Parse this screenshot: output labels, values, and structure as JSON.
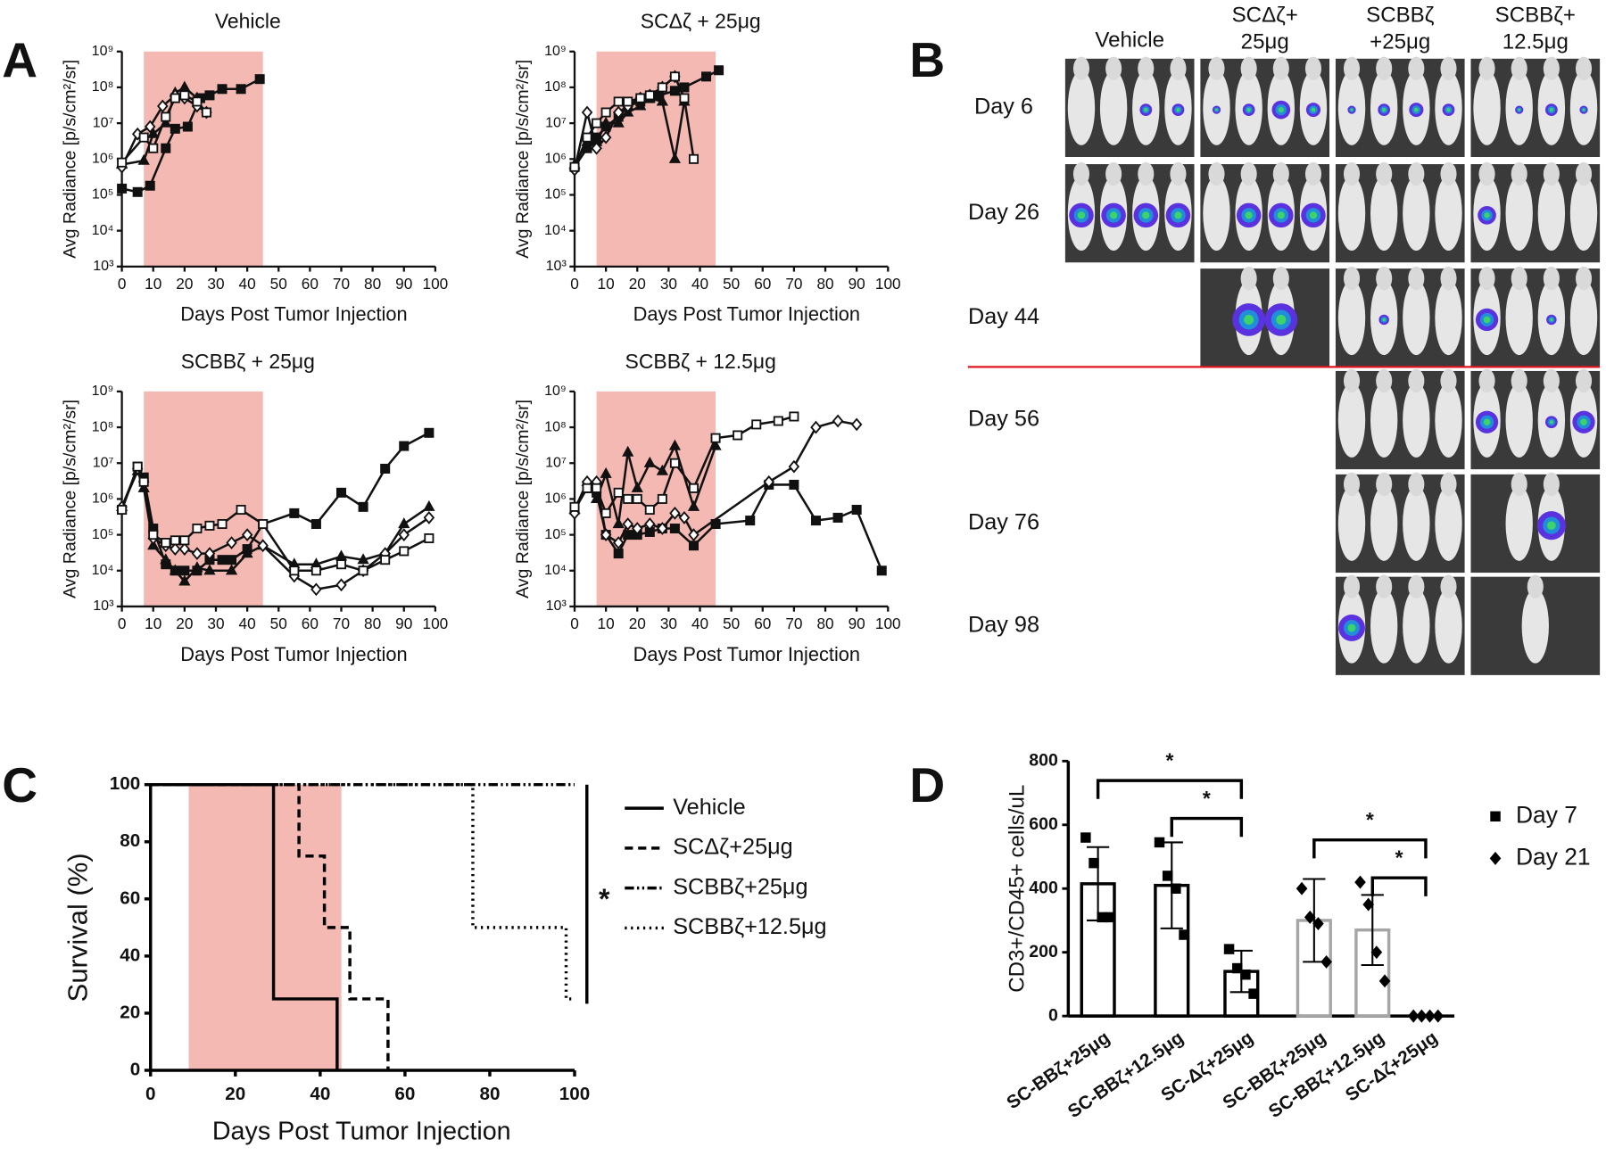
{
  "chart_data": [
    {
      "type": "line",
      "panel": "A",
      "title": "Vehicle",
      "xlabel": "Days Post  Tumor Injection",
      "ylabel": "Avg Radiance [p/s/cm²/sr]",
      "log_y": true,
      "xlim": [
        0,
        100
      ],
      "xticks": [
        0,
        10,
        20,
        30,
        40,
        50,
        60,
        70,
        80,
        90,
        100
      ],
      "ylim": [
        1000,
        1000000000
      ],
      "yticks": [
        {
          "value": 1000,
          "label": "10³"
        },
        {
          "value": 10000,
          "label": "10⁴"
        },
        {
          "value": 100000,
          "label": "10⁵"
        },
        {
          "value": 1000000,
          "label": "10⁶"
        },
        {
          "value": 10000000,
          "label": "10⁷"
        },
        {
          "value": 100000000,
          "label": "10⁸"
        },
        {
          "value": 1000000000,
          "label": "10⁹"
        }
      ],
      "shade": {
        "from": 7,
        "to": 45,
        "color": "#f5b9b4"
      },
      "series": [
        {
          "marker": "filled-square",
          "color": "#111111",
          "x": [
            0,
            5,
            9,
            14,
            17,
            21,
            25,
            28,
            32,
            38,
            44
          ],
          "values": [
            150000,
            120000,
            180000,
            2000000,
            7000000,
            8000000,
            50000000,
            60000000,
            90000000,
            90000000,
            170000000
          ]
        },
        {
          "marker": "triangle",
          "color": "#111111",
          "x": [
            0,
            7,
            10,
            14,
            17,
            20,
            24
          ],
          "values": [
            700000,
            900000,
            5000000,
            10000000,
            70000000,
            100000000,
            50000000
          ]
        },
        {
          "marker": "open-diamond",
          "color": "#111111",
          "x": [
            0,
            5,
            9,
            13,
            17,
            20,
            24,
            27
          ],
          "values": [
            600000,
            5000000,
            8000000,
            30000000,
            60000000,
            50000000,
            30000000,
            20000000
          ]
        },
        {
          "marker": "open-square",
          "color": "#111111",
          "x": [
            0,
            7,
            10,
            14,
            17,
            20,
            24,
            27
          ],
          "values": [
            800000,
            4000000,
            2000000,
            15000000,
            50000000,
            60000000,
            40000000,
            20000000
          ]
        }
      ]
    },
    {
      "type": "line",
      "title": "SCΔζ + 25μg",
      "xlabel": "Days Post  Tumor Injection",
      "ylabel": "Avg Radiance [p/s/cm²/sr]",
      "log_y": true,
      "xlim": [
        0,
        100
      ],
      "xticks": [
        0,
        10,
        20,
        30,
        40,
        50,
        60,
        70,
        80,
        90,
        100
      ],
      "ylim": [
        1000,
        1000000000
      ],
      "yticks": [
        {
          "value": 1000,
          "label": "10³"
        },
        {
          "value": 10000,
          "label": "10⁴"
        },
        {
          "value": 100000,
          "label": "10⁵"
        },
        {
          "value": 1000000,
          "label": "10⁶"
        },
        {
          "value": 10000000,
          "label": "10⁷"
        },
        {
          "value": 100000000,
          "label": "10⁸"
        },
        {
          "value": 1000000000,
          "label": "10⁹"
        }
      ],
      "shade": {
        "from": 7,
        "to": 45,
        "color": "#f5b9b4"
      },
      "series": [
        {
          "marker": "filled-square",
          "color": "#111111",
          "x": [
            0,
            4,
            7,
            10,
            14,
            17,
            21,
            24,
            27,
            32,
            35,
            42,
            46
          ],
          "values": [
            600000,
            2000000,
            4000000,
            8000000,
            15000000,
            30000000,
            40000000,
            50000000,
            60000000,
            80000000,
            100000000,
            200000000,
            300000000
          ]
        },
        {
          "marker": "triangle",
          "color": "#111111",
          "x": [
            0,
            4,
            7,
            10,
            14,
            17,
            21,
            24,
            28,
            32,
            35
          ],
          "values": [
            700000,
            3000000,
            3000000,
            10000000,
            10000000,
            20000000,
            30000000,
            50000000,
            40000000,
            1000000,
            40000000
          ]
        },
        {
          "marker": "open-diamond",
          "color": "#111111",
          "x": [
            0,
            4,
            7,
            10,
            14,
            17,
            21,
            24,
            28,
            32
          ],
          "values": [
            500000,
            20000000,
            2000000,
            4000000,
            20000000,
            30000000,
            50000000,
            60000000,
            100000000,
            200000000
          ]
        },
        {
          "marker": "open-square",
          "color": "#111111",
          "x": [
            0,
            4,
            7,
            10,
            14,
            17,
            21,
            24,
            28,
            32,
            35,
            38
          ],
          "values": [
            600000,
            4000000,
            10000000,
            20000000,
            40000000,
            40000000,
            50000000,
            60000000,
            100000000,
            200000000,
            50000000,
            1000000
          ]
        }
      ]
    },
    {
      "type": "line",
      "title": "SCBBζ + 25μg",
      "xlabel": "Days Post  Tumor Injection",
      "ylabel": "Avg Radiance [p/s/cm²/sr]",
      "log_y": true,
      "xlim": [
        0,
        100
      ],
      "xticks": [
        0,
        10,
        20,
        30,
        40,
        50,
        60,
        70,
        80,
        90,
        100
      ],
      "ylim": [
        1000,
        1000000000
      ],
      "yticks": [
        {
          "value": 1000,
          "label": "10³"
        },
        {
          "value": 10000,
          "label": "10⁴"
        },
        {
          "value": 100000,
          "label": "10⁵"
        },
        {
          "value": 1000000,
          "label": "10⁶"
        },
        {
          "value": 10000000,
          "label": "10⁷"
        },
        {
          "value": 100000000,
          "label": "10⁸"
        },
        {
          "value": 1000000000,
          "label": "10⁹"
        }
      ],
      "shade": {
        "from": 7,
        "to": 45,
        "color": "#f5b9b4"
      },
      "series": [
        {
          "marker": "filled-square",
          "color": "#111111",
          "x": [
            0,
            5,
            7,
            10,
            14,
            17,
            20,
            24,
            28,
            32,
            35,
            40,
            45,
            55,
            62,
            70,
            77,
            84,
            90,
            98
          ],
          "values": [
            500000,
            8000000,
            4000000,
            150000,
            15000,
            10000,
            10000,
            10000,
            20000,
            20000,
            20000,
            40000,
            200000,
            400000,
            200000,
            1500000,
            600000,
            7000000,
            30000000,
            70000000
          ]
        },
        {
          "marker": "triangle",
          "color": "#111111",
          "x": [
            0,
            5,
            7,
            10,
            14,
            17,
            20,
            24,
            28,
            35,
            40,
            45,
            55,
            62,
            70,
            77,
            84,
            90,
            98
          ],
          "values": [
            600000,
            6000000,
            2000000,
            50000,
            20000,
            10000,
            5000,
            12000,
            10000,
            10000,
            30000,
            50000,
            15000,
            15000,
            25000,
            20000,
            30000,
            200000,
            600000
          ]
        },
        {
          "marker": "open-diamond",
          "color": "#111111",
          "x": [
            0,
            5,
            7,
            10,
            14,
            17,
            20,
            24,
            28,
            35,
            40,
            45,
            55,
            62,
            70,
            77,
            84,
            90,
            98
          ],
          "values": [
            600000,
            7000000,
            3000000,
            80000,
            50000,
            40000,
            40000,
            30000,
            30000,
            60000,
            100000,
            50000,
            7000,
            3000,
            4000,
            10000,
            30000,
            100000,
            300000
          ]
        },
        {
          "marker": "open-square",
          "color": "#111111",
          "x": [
            0,
            5,
            7,
            10,
            14,
            17,
            20,
            24,
            28,
            32,
            38,
            45,
            55,
            62,
            70,
            77,
            84,
            90,
            98
          ],
          "values": [
            500000,
            8000000,
            3000000,
            100000,
            60000,
            70000,
            70000,
            150000,
            180000,
            200000,
            500000,
            200000,
            10000,
            10000,
            15000,
            10000,
            20000,
            35000,
            80000
          ]
        }
      ]
    },
    {
      "type": "line",
      "title": "SCBBζ + 12.5μg",
      "xlabel": "Days Post  Tumor Injection",
      "ylabel": "Avg Radiance [p/s/cm²/sr]",
      "log_y": true,
      "xlim": [
        0,
        100
      ],
      "xticks": [
        0,
        10,
        20,
        30,
        40,
        50,
        60,
        70,
        80,
        90,
        100
      ],
      "ylim": [
        1000,
        1000000000
      ],
      "yticks": [
        {
          "value": 1000,
          "label": "10³"
        },
        {
          "value": 10000,
          "label": "10⁴"
        },
        {
          "value": 100000,
          "label": "10⁵"
        },
        {
          "value": 1000000,
          "label": "10⁶"
        },
        {
          "value": 10000000,
          "label": "10⁷"
        },
        {
          "value": 100000000,
          "label": "10⁸"
        },
        {
          "value": 1000000000,
          "label": "10⁹"
        }
      ],
      "shade": {
        "from": 7,
        "to": 45,
        "color": "#f5b9b4"
      },
      "series": [
        {
          "marker": "filled-square",
          "color": "#111111",
          "x": [
            0,
            4,
            7,
            10,
            14,
            17,
            20,
            24,
            28,
            32,
            38,
            45,
            56,
            62,
            70,
            77,
            84,
            90,
            98
          ],
          "values": [
            500000,
            2000000,
            1500000,
            100000,
            30000,
            100000,
            100000,
            120000,
            150000,
            150000,
            50000,
            200000,
            250000,
            2500000,
            2500000,
            250000,
            300000,
            500000,
            10000
          ]
        },
        {
          "marker": "triangle",
          "color": "#111111",
          "x": [
            0,
            4,
            7,
            10,
            14,
            17,
            20,
            24,
            28,
            32,
            38,
            45
          ],
          "values": [
            500000,
            3000000,
            1000000,
            5000000,
            200000,
            20000000,
            2000000,
            10000000,
            6000000,
            30000000,
            600000,
            30000000
          ]
        },
        {
          "marker": "open-diamond",
          "color": "#111111",
          "x": [
            0,
            4,
            7,
            10,
            14,
            17,
            20,
            24,
            28,
            32,
            35,
            38,
            62,
            70,
            77,
            84,
            90
          ],
          "values": [
            400000,
            3000000,
            3000000,
            100000,
            60000,
            200000,
            150000,
            200000,
            150000,
            400000,
            300000,
            100000,
            3000000,
            8000000,
            100000000,
            150000000,
            120000000
          ]
        },
        {
          "marker": "open-square",
          "color": "#111111",
          "x": [
            0,
            4,
            7,
            10,
            14,
            17,
            20,
            24,
            28,
            32,
            38,
            45,
            52,
            58,
            65,
            70
          ],
          "values": [
            600000,
            2000000,
            2000000,
            400000,
            1500000,
            1000000,
            1000000,
            500000,
            1000000,
            10000000,
            2000000,
            50000000,
            60000000,
            120000000,
            150000000,
            200000000
          ]
        }
      ]
    },
    {
      "type": "image_grid",
      "panel": "B",
      "columns": [
        [
          "Vehicle"
        ],
        [
          "SCΔζ+",
          "25μg"
        ],
        [
          "SCBBζ",
          "+25μg"
        ],
        [
          "SCBBζ+",
          "12.5μg"
        ]
      ],
      "rows": [
        "Day 6",
        "Day 26",
        "Day 44",
        "Day 56",
        "Day 76",
        "Day 98"
      ]
    },
    {
      "type": "step",
      "panel": "C",
      "xlabel": "Days Post  Tumor Injection",
      "ylabel": "Survival (%)",
      "xlim": [
        0,
        100
      ],
      "xticks": [
        0,
        20,
        40,
        60,
        80,
        100
      ],
      "ylim": [
        0,
        100
      ],
      "yticks": [
        0,
        20,
        40,
        60,
        80,
        100
      ],
      "shade": {
        "from": 9,
        "to": 45,
        "color": "#f5b9b4"
      },
      "annotation": "*",
      "series": [
        {
          "name": "Vehicle",
          "color": "#000000",
          "line_style": "solid",
          "x": [
            0,
            29,
            44
          ],
          "values": [
            100,
            25,
            0
          ]
        },
        {
          "name": "SCΔζ+25μg",
          "color": "#000000",
          "line_style": "dashed",
          "x": [
            0,
            35,
            41,
            47,
            56
          ],
          "values": [
            100,
            75,
            50,
            25,
            0
          ]
        },
        {
          "name": "SCBBζ+25μg",
          "color": "#000000",
          "line_style": "dashdot",
          "x": [
            0,
            100
          ],
          "values": [
            100,
            100
          ]
        },
        {
          "name": "SCBBζ+12.5μg",
          "color": "#000000",
          "line_style": "dotted",
          "x": [
            0,
            76,
            98,
            100
          ],
          "values": [
            100,
            50,
            25,
            25
          ]
        }
      ]
    },
    {
      "type": "bar",
      "panel": "D",
      "ylabel": "CD3+/CD45+ cells/uL",
      "categories": [
        "SC-BBζ+25μg",
        "SC-BBζ+12.5μg",
        "SC-Δζ+25μg"
      ],
      "ylim": [
        0,
        800
      ],
      "yticks": [
        0,
        200,
        400,
        600,
        800
      ],
      "series": [
        {
          "name": "Day 7",
          "color": "#000000",
          "marker": "filled-square",
          "values": [
            415,
            410,
            140
          ],
          "errors": [
            115,
            135,
            65
          ],
          "points": [
            [
              560,
              480,
              310,
              310
            ],
            [
              545,
              440,
              400,
              255
            ],
            [
              210,
              150,
              130,
              70
            ]
          ],
          "brackets": [
            {
              "from": 0,
              "to": 2,
              "label": "*"
            },
            {
              "from": 1,
              "to": 2,
              "label": "*"
            }
          ]
        },
        {
          "name": "Day 21",
          "color": "#a6a6a6",
          "marker": "filled-diamond",
          "values": [
            300,
            270,
            0
          ],
          "errors": [
            130,
            110,
            0
          ],
          "points": [
            [
              400,
              310,
              290,
              170
            ],
            [
              420,
              350,
              200,
              110
            ],
            [
              0,
              0,
              0,
              0
            ]
          ],
          "brackets": [
            {
              "from": 0,
              "to": 2,
              "label": "*"
            },
            {
              "from": 1,
              "to": 2,
              "label": "*"
            }
          ]
        }
      ]
    }
  ]
}
